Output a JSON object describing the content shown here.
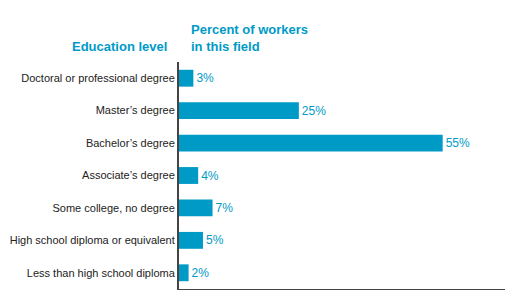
{
  "chart_data": {
    "type": "bar",
    "orientation": "horizontal",
    "ylabel": "Education level",
    "xlabel": "Percent of workers\nin this field",
    "categories": [
      "Less than high school diploma",
      "High school diploma or equivalent",
      "Some college, no degree",
      "Associate’s degree",
      "Bachelor’s degree",
      "Master’s degree",
      "Doctoral or professional degree"
    ],
    "values": [
      2,
      5,
      7,
      4,
      55,
      25,
      3
    ],
    "value_labels": [
      "2%",
      "5%",
      "7%",
      "4%",
      "55%",
      "25%",
      "3%"
    ],
    "data_labels": true,
    "color": "#009ac7",
    "xlim": [
      0,
      68
    ],
    "tick_labels": "y",
    "grid": false
  }
}
